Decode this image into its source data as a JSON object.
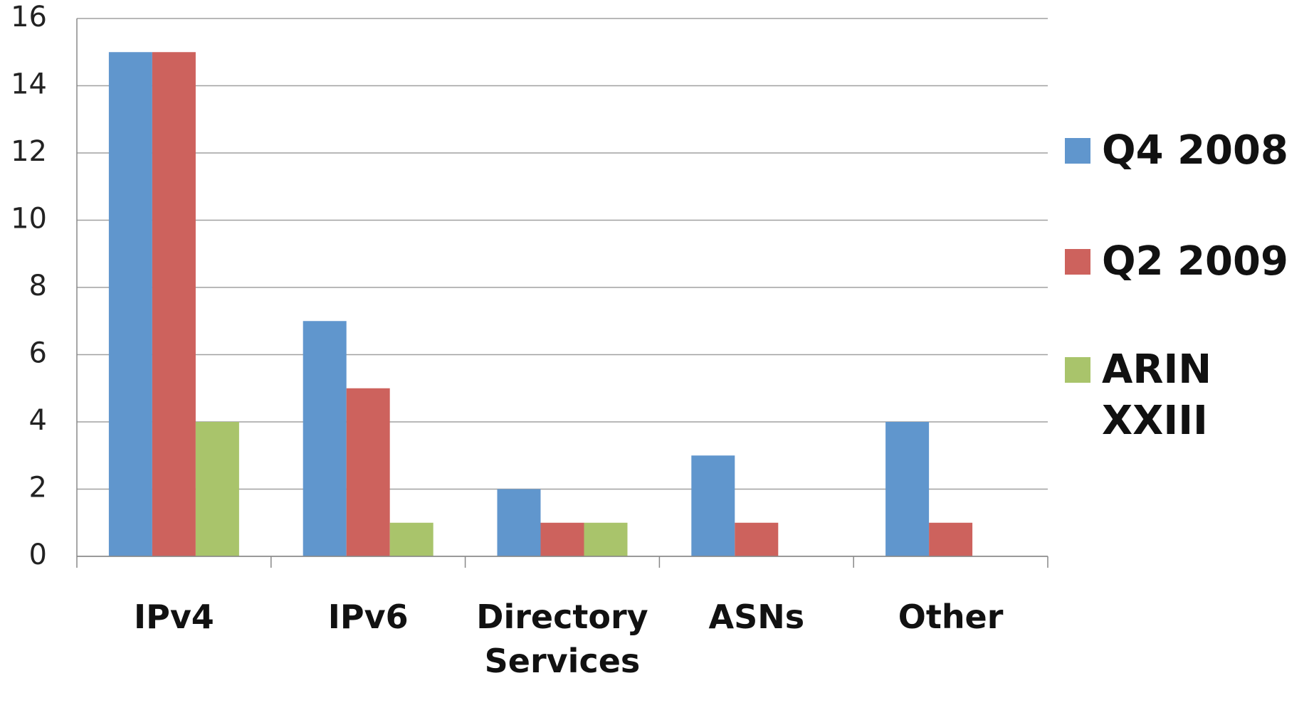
{
  "chart_data": {
    "type": "bar",
    "categories": [
      "IPv4",
      "IPv6",
      "Directory Services",
      "ASNs",
      "Other"
    ],
    "series": [
      {
        "name": "Q4 2008",
        "color": "#6096cd",
        "values": [
          15,
          7,
          2,
          3,
          4
        ]
      },
      {
        "name": "Q2 2009",
        "color": "#cd625d",
        "values": [
          15,
          5,
          1,
          1,
          1
        ]
      },
      {
        "name": "ARIN XXIII",
        "color": "#a9c46b",
        "values": [
          4,
          1,
          1,
          0,
          0
        ]
      }
    ],
    "ylim": [
      0,
      16
    ],
    "yticks": [
      0,
      2,
      4,
      6,
      8,
      10,
      12,
      14,
      16
    ],
    "grid": true,
    "legend": "right"
  }
}
